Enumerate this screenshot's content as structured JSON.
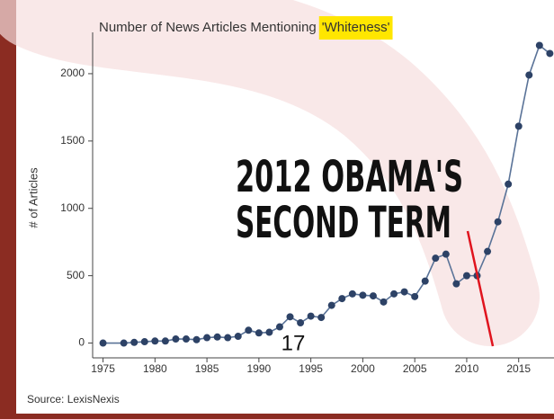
{
  "chart_data": {
    "type": "line",
    "title": "Number of News Articles Mentioning",
    "title_highlight": "'Whiteness'",
    "y_label": "# of Articles",
    "source": "Source: LexisNexis",
    "annotation": [
      "2012 OBAMA'S",
      "SECOND TERM"
    ],
    "slide_number": "17",
    "x": [
      1975,
      1977,
      1978,
      1979,
      1980,
      1981,
      1982,
      1983,
      1984,
      1985,
      1986,
      1987,
      1988,
      1989,
      1990,
      1991,
      1992,
      1993,
      1994,
      1995,
      1996,
      1997,
      1998,
      1999,
      2000,
      2001,
      2002,
      2003,
      2004,
      2005,
      2006,
      2007,
      2008,
      2009,
      2010,
      2011,
      2012,
      2013,
      2014,
      2015,
      2016,
      2017,
      2018
    ],
    "series": [
      {
        "name": "Articles",
        "color": "#2d4266",
        "line_color": "#5a7398",
        "values": [
          0,
          0,
          5,
          10,
          15,
          15,
          30,
          30,
          25,
          40,
          45,
          40,
          50,
          95,
          75,
          80,
          120,
          195,
          150,
          200,
          190,
          280,
          330,
          365,
          355,
          350,
          305,
          365,
          380,
          345,
          460,
          630,
          660,
          440,
          500,
          500,
          680,
          900,
          1180,
          1610,
          1990,
          2210,
          2150
        ]
      }
    ],
    "xlim": [
      1974,
      2018.4
    ],
    "ylim": [
      -110,
      2280
    ],
    "xticks": [
      1975,
      1980,
      1985,
      1990,
      1995,
      2000,
      2005,
      2010,
      2015
    ],
    "yticks": [
      0,
      500,
      1000,
      1500,
      2000
    ]
  }
}
